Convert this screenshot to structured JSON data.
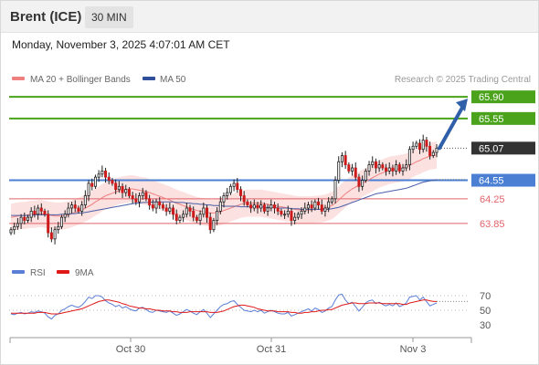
{
  "header": {
    "title": "Brent (ICE)",
    "timeframe": "30 MIN"
  },
  "datetime": "Monday, November 3, 2025 4:07:01 AM CET",
  "legend": {
    "ma20": "MA 20 + Bollinger Bands",
    "ma50": "MA 50",
    "credit": "Research © 2025 Trading Central",
    "rsi": "RSI",
    "rsi_ma": "9MA"
  },
  "colors": {
    "resistance": "#4aa31a",
    "support": "#4a7fd4",
    "support_red": "#e2646a",
    "price_tag": "#333333",
    "band_fill": "#fbdcdc",
    "ma20": "#f08080",
    "ma50": "#4a5fa8",
    "rsi": "#5b7fd6",
    "rsi_ma": "#e01818",
    "arrow": "#2f5fa8"
  },
  "chart_data": [
    {
      "type": "candlestick",
      "x_ticks": [
        "Oct 30",
        "Oct 31",
        "Nov 3"
      ],
      "ylim": [
        63.45,
        66.05
      ],
      "levels": [
        {
          "value": 65.9,
          "label": "65.90",
          "kind": "resistance"
        },
        {
          "value": 65.55,
          "label": "65.55",
          "kind": "resistance"
        },
        {
          "value": 65.07,
          "label": "65.07",
          "kind": "current"
        },
        {
          "value": 64.55,
          "label": "64.55",
          "kind": "support"
        },
        {
          "value": 64.25,
          "label": "64.25",
          "kind": "support_red"
        },
        {
          "value": 63.85,
          "label": "63.85",
          "kind": "support_red"
        }
      ],
      "close_series": [
        63.75,
        63.8,
        63.85,
        63.95,
        63.9,
        63.95,
        64.05,
        64.0,
        64.1,
        64.05,
        64.0,
        63.7,
        63.6,
        63.75,
        63.8,
        63.95,
        64.0,
        64.1,
        64.15,
        64.1,
        64.05,
        64.15,
        64.3,
        64.5,
        64.45,
        64.6,
        64.65,
        64.7,
        64.6,
        64.55,
        64.5,
        64.4,
        64.45,
        64.35,
        64.4,
        64.3,
        64.25,
        64.2,
        64.3,
        64.35,
        64.25,
        64.15,
        64.1,
        64.2,
        64.15,
        64.1,
        64.05,
        64.1,
        64.0,
        63.9,
        63.95,
        64.0,
        64.1,
        64.05,
        63.95,
        63.9,
        64.0,
        64.1,
        63.95,
        63.75,
        63.9,
        64.05,
        64.2,
        64.3,
        64.35,
        64.45,
        64.5,
        64.4,
        64.3,
        64.2,
        64.15,
        64.1,
        64.15,
        64.1,
        64.15,
        64.05,
        64.1,
        64.15,
        64.1,
        64.05,
        64.0,
        64.0,
        64.05,
        63.9,
        63.95,
        64.0,
        64.05,
        64.1,
        64.15,
        64.1,
        64.2,
        64.15,
        64.05,
        64.1,
        64.2,
        64.25,
        64.55,
        64.85,
        64.95,
        64.8,
        64.7,
        64.75,
        64.6,
        64.45,
        64.55,
        64.7,
        64.8,
        64.85,
        64.75,
        64.8,
        64.75,
        64.7,
        64.75,
        64.7,
        64.8,
        64.7,
        64.75,
        64.8,
        65.05,
        65.1,
        65.15,
        65.05,
        65.2,
        65.1,
        64.95,
        65.0,
        65.07
      ],
      "ma20": [
        63.95,
        63.96,
        63.97,
        63.98,
        63.98,
        63.99,
        64.0,
        64.0,
        64.01,
        64.01,
        64.0,
        63.99,
        63.98,
        63.97,
        63.97,
        63.97,
        63.98,
        63.99,
        64.01,
        64.03,
        64.05,
        64.07,
        64.1,
        64.13,
        64.16,
        64.2,
        64.23,
        64.27,
        64.3,
        64.32,
        64.34,
        64.36,
        64.38,
        64.39,
        64.4,
        64.41,
        64.41,
        64.4,
        64.39,
        64.38,
        64.37,
        64.35,
        64.33,
        64.31,
        64.29,
        64.27,
        64.25,
        64.23,
        64.2,
        64.18,
        64.16,
        64.14,
        64.12,
        64.1,
        64.08,
        64.06,
        64.05,
        64.04,
        64.03,
        64.02,
        64.02,
        64.03,
        64.04,
        64.06,
        64.08,
        64.1,
        64.12,
        64.14,
        64.16,
        64.17,
        64.18,
        64.18,
        64.18,
        64.18,
        64.18,
        64.17,
        64.16,
        64.15,
        64.14,
        64.13,
        64.12,
        64.11,
        64.1,
        64.09,
        64.08,
        64.07,
        64.07,
        64.07,
        64.07,
        64.07,
        64.08,
        64.08,
        64.09,
        64.1,
        64.12,
        64.14,
        64.18,
        64.23,
        64.28,
        64.33,
        64.37,
        64.41,
        64.44,
        64.47,
        64.5,
        64.53,
        64.56,
        64.59,
        64.62,
        64.65,
        64.67,
        64.69,
        64.71,
        64.72,
        64.73,
        64.74,
        64.75,
        64.76,
        64.79,
        64.82,
        64.85,
        64.87,
        64.9,
        64.92,
        64.94,
        64.95,
        64.96
      ],
      "ma50": [
        63.98,
        63.98,
        63.98,
        63.98,
        63.98,
        63.98,
        63.98,
        63.99,
        63.99,
        63.99,
        63.99,
        63.99,
        63.99,
        63.99,
        63.99,
        64.0,
        64.0,
        64.0,
        64.01,
        64.01,
        64.02,
        64.02,
        64.03,
        64.04,
        64.05,
        64.06,
        64.07,
        64.08,
        64.09,
        64.1,
        64.11,
        64.12,
        64.13,
        64.14,
        64.15,
        64.16,
        64.17,
        64.18,
        64.18,
        64.19,
        64.19,
        64.19,
        64.2,
        64.2,
        64.2,
        64.2,
        64.2,
        64.2,
        64.2,
        64.19,
        64.19,
        64.19,
        64.18,
        64.18,
        64.17,
        64.17,
        64.16,
        64.16,
        64.15,
        64.15,
        64.14,
        64.14,
        64.14,
        64.13,
        64.13,
        64.13,
        64.13,
        64.13,
        64.12,
        64.12,
        64.12,
        64.12,
        64.12,
        64.12,
        64.12,
        64.11,
        64.11,
        64.11,
        64.11,
        64.1,
        64.1,
        64.1,
        64.1,
        64.09,
        64.09,
        64.09,
        64.08,
        64.08,
        64.08,
        64.08,
        64.08,
        64.08,
        64.08,
        64.08,
        64.08,
        64.09,
        64.1,
        64.11,
        64.13,
        64.15,
        64.17,
        64.19,
        64.21,
        64.23,
        64.25,
        64.27,
        64.29,
        64.31,
        64.33,
        64.34,
        64.35,
        64.36,
        64.37,
        64.38,
        64.39,
        64.4,
        64.41,
        64.42,
        64.44,
        64.46,
        64.48,
        64.5,
        64.52,
        64.53,
        64.54,
        64.55,
        64.56
      ]
    },
    {
      "type": "line",
      "name": "RSI",
      "ylim": [
        20,
        80
      ],
      "y_ticks": [
        70,
        50,
        30
      ],
      "rsi": [
        45,
        44,
        46,
        47,
        45,
        46,
        48,
        47,
        49,
        48,
        46,
        41,
        38,
        43,
        45,
        50,
        52,
        55,
        57,
        55,
        54,
        57,
        62,
        68,
        66,
        70,
        70,
        68,
        63,
        60,
        58,
        55,
        57,
        53,
        55,
        52,
        50,
        49,
        53,
        54,
        51,
        48,
        47,
        50,
        49,
        48,
        47,
        49,
        46,
        43,
        45,
        48,
        51,
        49,
        46,
        44,
        48,
        51,
        46,
        40,
        45,
        50,
        55,
        58,
        59,
        62,
        63,
        58,
        54,
        50,
        49,
        48,
        50,
        48,
        50,
        46,
        48,
        50,
        48,
        46,
        45,
        45,
        47,
        42,
        44,
        46,
        48,
        50,
        52,
        49,
        53,
        51,
        47,
        49,
        53,
        55,
        64,
        71,
        72,
        64,
        59,
        61,
        55,
        49,
        54,
        60,
        63,
        64,
        59,
        61,
        58,
        56,
        58,
        56,
        60,
        55,
        57,
        60,
        68,
        69,
        70,
        64,
        68,
        62,
        56,
        58,
        60
      ],
      "rsi_ma": [
        46,
        46,
        46,
        46,
        46,
        46,
        46,
        46,
        47,
        47,
        47,
        46,
        45,
        45,
        45,
        46,
        47,
        48,
        49,
        50,
        51,
        52,
        54,
        56,
        58,
        60,
        62,
        63,
        64,
        64,
        63,
        62,
        61,
        59,
        58,
        56,
        55,
        54,
        53,
        53,
        52,
        52,
        51,
        50,
        50,
        49,
        49,
        49,
        48,
        48,
        47,
        47,
        47,
        48,
        48,
        48,
        48,
        48,
        48,
        47,
        47,
        47,
        48,
        49,
        51,
        53,
        55,
        56,
        57,
        57,
        56,
        55,
        54,
        52,
        51,
        50,
        49,
        49,
        49,
        48,
        48,
        48,
        48,
        47,
        47,
        46,
        46,
        47,
        47,
        48,
        48,
        49,
        50,
        50,
        51,
        51,
        53,
        55,
        57,
        58,
        59,
        60,
        60,
        59,
        59,
        59,
        60,
        60,
        60,
        60,
        59,
        59,
        59,
        59,
        59,
        59,
        58,
        58,
        60,
        61,
        62,
        63,
        64,
        64,
        63,
        62,
        62
      ]
    }
  ]
}
